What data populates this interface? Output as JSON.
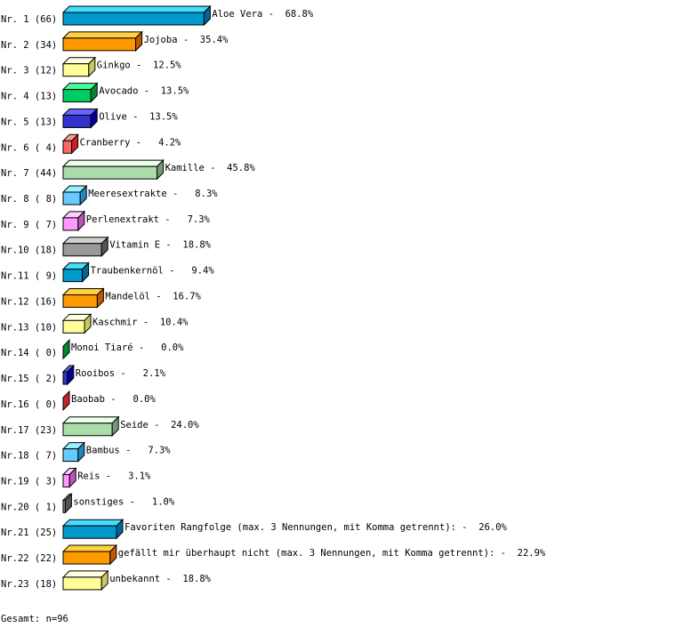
{
  "chart_data": {
    "type": "bar",
    "orientation": "horizontal",
    "style": "3d",
    "categories": [
      "Aloe Vera",
      "Jojoba",
      "Ginkgo",
      "Avocado",
      "Olive",
      "Cranberry",
      "Kamille",
      "Meeresextrakte",
      "Perlenextrakt",
      "Vitamin E",
      "Traubenkernöl",
      "Mandelöl",
      "Kaschmir",
      "Monoi Tiaré",
      "Rooibos",
      "Baobab",
      "Seide",
      "Bambus",
      "Reis",
      "sonstiges",
      "Favoriten Rangfolge (max. 3 Nennungen, mit Komma getrennt):",
      "gefällt mir überhaupt nicht (max. 3 Nennungen, mit Komma getrennt):",
      "unbekannt"
    ],
    "row_labels": [
      "Nr. 1",
      "Nr. 2",
      "Nr. 3",
      "Nr. 4",
      "Nr. 5",
      "Nr. 6",
      "Nr. 7",
      "Nr. 8",
      "Nr. 9",
      "Nr.10",
      "Nr.11",
      "Nr.12",
      "Nr.13",
      "Nr.14",
      "Nr.15",
      "Nr.16",
      "Nr.17",
      "Nr.18",
      "Nr.19",
      "Nr.20",
      "Nr.21",
      "Nr.22",
      "Nr.23"
    ],
    "counts": [
      66,
      34,
      12,
      13,
      13,
      4,
      44,
      8,
      7,
      18,
      9,
      16,
      10,
      0,
      2,
      0,
      23,
      7,
      3,
      1,
      25,
      22,
      18
    ],
    "percents": [
      "68.8%",
      "35.4%",
      "12.5%",
      "13.5%",
      "13.5%",
      "4.2%",
      "45.8%",
      "8.3%",
      "7.3%",
      "18.8%",
      "9.4%",
      "16.7%",
      "10.4%",
      "0.0%",
      "2.1%",
      "0.0%",
      "24.0%",
      "7.3%",
      "3.1%",
      "1.0%",
      "26.0%",
      "22.9%",
      "18.8%"
    ],
    "palette": [
      {
        "front": "#0099cc",
        "top": "#44ddff",
        "side": "#006699"
      },
      {
        "front": "#ff9900",
        "top": "#ffd040",
        "side": "#c05a00"
      },
      {
        "front": "#ffff99",
        "top": "#ffffdd",
        "side": "#c8c860"
      },
      {
        "front": "#00cc66",
        "top": "#44ff99",
        "side": "#008833"
      },
      {
        "front": "#3333cc",
        "top": "#6666ff",
        "side": "#000099"
      },
      {
        "front": "#ff6666",
        "top": "#ff9999",
        "side": "#cc2222"
      },
      {
        "front": "#aaddaa",
        "top": "#eeffee",
        "side": "#779977"
      },
      {
        "front": "#66ccff",
        "top": "#99eeff",
        "side": "#2288bb"
      },
      {
        "front": "#ff99ff",
        "top": "#ffccff",
        "side": "#bb55bb"
      },
      {
        "front": "#999999",
        "top": "#d0d0d0",
        "side": "#555555"
      }
    ],
    "grid": false,
    "legend": "none"
  },
  "footer": {
    "total": "Gesamt: n=96"
  }
}
